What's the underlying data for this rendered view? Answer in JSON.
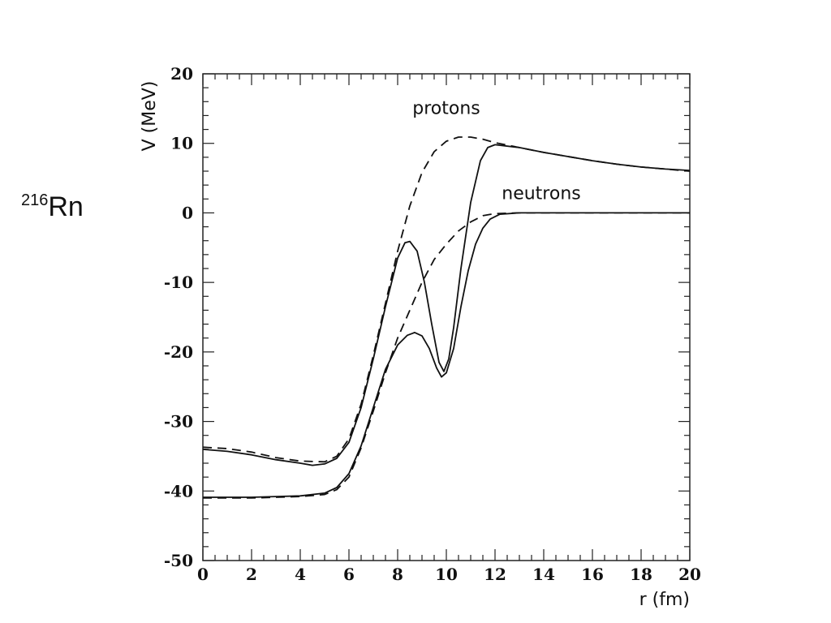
{
  "nucleus_label": {
    "mass_number": "216",
    "symbol": "Rn"
  },
  "chart_data": {
    "type": "line",
    "xlabel": "r (fm)",
    "ylabel": "V (MeV)",
    "xlim": [
      0,
      20
    ],
    "ylim": [
      -50,
      20
    ],
    "x_ticks": [
      0,
      2,
      4,
      6,
      8,
      10,
      12,
      14,
      16,
      18,
      20
    ],
    "y_ticks": [
      -50,
      -40,
      -30,
      -20,
      -10,
      0,
      10,
      20
    ],
    "grid": false,
    "annotations": [
      {
        "text": "protons",
        "x": 10.0,
        "y": 14.2
      },
      {
        "text": "neutrons",
        "x": 13.9,
        "y": 2.0
      }
    ],
    "series": [
      {
        "style": "dashed",
        "points": [
          [
            0,
            -33.7
          ],
          [
            1,
            -33.9
          ],
          [
            2,
            -34.4
          ],
          [
            3,
            -35.2
          ],
          [
            4,
            -35.7
          ],
          [
            5,
            -35.8
          ],
          [
            5.5,
            -35.0
          ],
          [
            6,
            -32.5
          ],
          [
            6.5,
            -27.5
          ],
          [
            7,
            -20.5
          ],
          [
            7.5,
            -13.0
          ],
          [
            8,
            -5.5
          ],
          [
            8.5,
            1.0
          ],
          [
            9,
            5.8
          ],
          [
            9.5,
            8.8
          ],
          [
            10,
            10.3
          ],
          [
            10.5,
            10.9
          ],
          [
            11,
            10.9
          ],
          [
            11.5,
            10.6
          ],
          [
            12,
            10.1
          ],
          [
            13,
            9.4
          ],
          [
            14,
            8.7
          ],
          [
            15,
            8.1
          ],
          [
            16,
            7.5
          ],
          [
            17,
            7.0
          ],
          [
            18,
            6.6
          ],
          [
            19,
            6.3
          ],
          [
            20,
            6.0
          ]
        ]
      },
      {
        "style": "solid",
        "points": [
          [
            0,
            -34.0
          ],
          [
            1,
            -34.3
          ],
          [
            2,
            -34.8
          ],
          [
            3,
            -35.5
          ],
          [
            4,
            -36.0
          ],
          [
            4.5,
            -36.3
          ],
          [
            5,
            -36.1
          ],
          [
            5.5,
            -35.3
          ],
          [
            6,
            -33.0
          ],
          [
            6.5,
            -28.0
          ],
          [
            7,
            -21.0
          ],
          [
            7.5,
            -13.5
          ],
          [
            8,
            -6.5
          ],
          [
            8.3,
            -4.3
          ],
          [
            8.5,
            -4.1
          ],
          [
            8.8,
            -5.5
          ],
          [
            9.1,
            -10.0
          ],
          [
            9.4,
            -16.0
          ],
          [
            9.7,
            -21.5
          ],
          [
            9.9,
            -22.8
          ],
          [
            10.1,
            -21.0
          ],
          [
            10.3,
            -16.5
          ],
          [
            10.6,
            -8.0
          ],
          [
            11,
            1.5
          ],
          [
            11.4,
            7.5
          ],
          [
            11.7,
            9.4
          ],
          [
            12,
            9.8
          ],
          [
            13,
            9.4
          ],
          [
            14,
            8.7
          ],
          [
            15,
            8.1
          ],
          [
            16,
            7.5
          ],
          [
            17,
            7.0
          ],
          [
            18,
            6.6
          ],
          [
            19,
            6.3
          ],
          [
            20,
            6.1
          ]
        ]
      },
      {
        "style": "dashed",
        "points": [
          [
            0,
            -41.0
          ],
          [
            1,
            -41.0
          ],
          [
            2,
            -41.0
          ],
          [
            3,
            -40.9
          ],
          [
            4,
            -40.8
          ],
          [
            5,
            -40.5
          ],
          [
            5.5,
            -39.8
          ],
          [
            6,
            -38.0
          ],
          [
            6.5,
            -33.8
          ],
          [
            7,
            -28.5
          ],
          [
            7.5,
            -23.0
          ],
          [
            8,
            -18.0
          ],
          [
            8.5,
            -14.0
          ],
          [
            9,
            -10.0
          ],
          [
            9.5,
            -6.7
          ],
          [
            10,
            -4.5
          ],
          [
            10.5,
            -2.6
          ],
          [
            11,
            -1.3
          ],
          [
            11.5,
            -0.4
          ],
          [
            12,
            -0.1
          ],
          [
            13,
            0
          ],
          [
            14,
            0
          ],
          [
            16,
            0
          ],
          [
            18,
            0
          ],
          [
            20,
            0
          ]
        ]
      },
      {
        "style": "solid",
        "points": [
          [
            0,
            -40.9
          ],
          [
            1,
            -40.9
          ],
          [
            2,
            -40.9
          ],
          [
            3,
            -40.8
          ],
          [
            4,
            -40.7
          ],
          [
            5,
            -40.3
          ],
          [
            5.5,
            -39.5
          ],
          [
            6,
            -37.5
          ],
          [
            6.5,
            -33.5
          ],
          [
            7,
            -28.0
          ],
          [
            7.5,
            -22.5
          ],
          [
            8,
            -19.0
          ],
          [
            8.4,
            -17.6
          ],
          [
            8.7,
            -17.2
          ],
          [
            9,
            -17.7
          ],
          [
            9.3,
            -19.5
          ],
          [
            9.6,
            -22.3
          ],
          [
            9.8,
            -23.6
          ],
          [
            10,
            -23.0
          ],
          [
            10.3,
            -19.5
          ],
          [
            10.6,
            -13.5
          ],
          [
            10.9,
            -8.3
          ],
          [
            11.2,
            -4.5
          ],
          [
            11.5,
            -2.2
          ],
          [
            11.8,
            -0.9
          ],
          [
            12.2,
            -0.2
          ],
          [
            13,
            0
          ],
          [
            14,
            0
          ],
          [
            16,
            0
          ],
          [
            18,
            0
          ],
          [
            20,
            0
          ]
        ]
      }
    ]
  }
}
